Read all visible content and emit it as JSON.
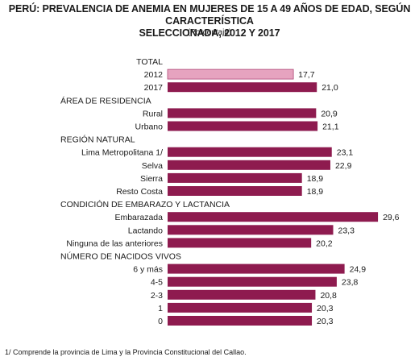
{
  "title_line1": "PERÚ: PREVALENCIA DE ANEMIA EN MUJERES DE 15 A 49 AÑOS DE EDAD, SEGÚN CARACTERÍSTICA",
  "title_line2": "SELECCIONADA, 2012 Y 2017",
  "subtitle": "(Porcentaje)",
  "footnote": "1/ Comprende la provincia de Lima y la Provincia Constitucional del Callao.",
  "colors": {
    "bar_2017": "#8e1b4f",
    "bar_2012": "#e6a3bf",
    "bar_2012_border": "#b04a78"
  },
  "chart_data": {
    "type": "bar",
    "orientation": "horizontal",
    "title": "PERÚ: PREVALENCIA DE ANEMIA EN MUJERES DE 15 A 49 AÑOS DE EDAD, SEGÚN CARACTERÍSTICA SELECCIONADA, 2012 Y 2017",
    "subtitle": "(Porcentaje)",
    "grid": false,
    "rows": [
      {
        "label": "TOTAL",
        "header": true
      },
      {
        "label": "2012",
        "value": 17.7,
        "value_label": "17,7",
        "year": 2012
      },
      {
        "label": "2017",
        "value": 21.0,
        "value_label": "21,0",
        "year": 2017
      },
      {
        "label": "ÁREA DE RESIDENCIA",
        "header": true
      },
      {
        "label": "Rural",
        "value": 20.9,
        "value_label": "20,9",
        "year": 2017
      },
      {
        "label": "Urbano",
        "value": 21.1,
        "value_label": "21,1",
        "year": 2017
      },
      {
        "label": "REGIÓN NATURAL",
        "header": true
      },
      {
        "label": "Lima Metropolitana 1/",
        "value": 23.1,
        "value_label": "23,1",
        "year": 2017
      },
      {
        "label": "Selva",
        "value": 22.9,
        "value_label": "22,9",
        "year": 2017
      },
      {
        "label": "Sierra",
        "value": 18.9,
        "value_label": "18,9",
        "year": 2017
      },
      {
        "label": "Resto Costa",
        "value": 18.9,
        "value_label": "18,9",
        "year": 2017
      },
      {
        "label": "CONDICIÓN DE EMBARAZO Y LACTANCIA",
        "header": true
      },
      {
        "label": "Embarazada",
        "value": 29.6,
        "value_label": "29,6",
        "year": 2017
      },
      {
        "label": "Lactando",
        "value": 23.3,
        "value_label": "23,3",
        "year": 2017
      },
      {
        "label": "Ninguna de las anteriores",
        "value": 20.2,
        "value_label": "20,2",
        "year": 2017
      },
      {
        "label": "NÚMERO DE NACIDOS VIVOS",
        "header": true
      },
      {
        "label": "6 y más",
        "value": 24.9,
        "value_label": "24,9",
        "year": 2017
      },
      {
        "label": "4-5",
        "value": 23.8,
        "value_label": "23,8",
        "year": 2017
      },
      {
        "label": "2-3",
        "value": 20.8,
        "value_label": "20,8",
        "year": 2017
      },
      {
        "label": "1",
        "value": 20.3,
        "value_label": "20,3",
        "year": 2017
      },
      {
        "label": "0",
        "value": 20.3,
        "value_label": "20,3",
        "year": 2017
      }
    ]
  }
}
